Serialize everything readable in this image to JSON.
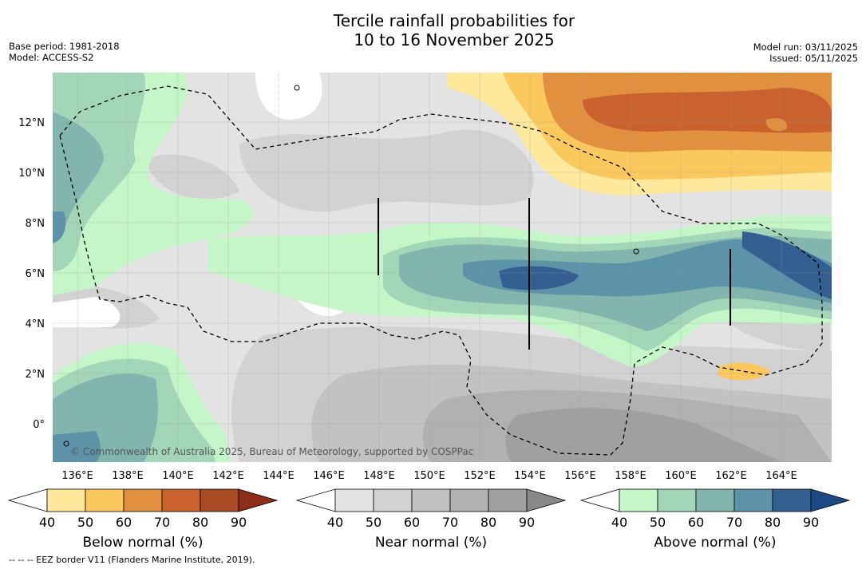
{
  "title_line1": "Tercile rainfall probabilities for",
  "title_line2": "10 to 16 November 2025",
  "meta_left": {
    "base_period": "Base period: 1981-2018",
    "model": "Model: ACCESS-S2"
  },
  "meta_right": {
    "model_run": "Model run: 03/11/2025",
    "issued": "Issued: 05/11/2025"
  },
  "map": {
    "lon_labels": [
      "136°E",
      "138°E",
      "140°E",
      "142°E",
      "144°E",
      "146°E",
      "148°E",
      "150°E",
      "152°E",
      "154°E",
      "156°E",
      "158°E",
      "160°E",
      "162°E",
      "164°E"
    ],
    "lat_labels": [
      "12°N",
      "10°N",
      "8°N",
      "6°N",
      "4°N",
      "2°N",
      "0°"
    ],
    "copyright": "© Commonwealth of Australia 2025, Bureau of Meteorology, supported by COSPPac"
  },
  "colorbars": [
    {
      "label": "Below normal (%)",
      "ticks": [
        "40",
        "50",
        "60",
        "70",
        "80",
        "90"
      ],
      "colors": [
        "#ffffff",
        "#fde89c",
        "#fbc85e",
        "#e0903f",
        "#c9622f",
        "#a84a24",
        "#8c2e1a"
      ]
    },
    {
      "label": "Near normal (%)",
      "ticks": [
        "40",
        "50",
        "60",
        "70",
        "80",
        "90"
      ],
      "colors": [
        "#ffffff",
        "#e3e3e3",
        "#d2d2d2",
        "#c2c2c2",
        "#b1b1b1",
        "#a0a0a0",
        "#888888"
      ]
    },
    {
      "label": "Above normal (%)",
      "ticks": [
        "40",
        "50",
        "60",
        "70",
        "80",
        "90"
      ],
      "colors": [
        "#ffffff",
        "#c5f6c8",
        "#a3d6b8",
        "#82b5ae",
        "#5d93a8",
        "#335f91",
        "#1d4a82"
      ]
    }
  ],
  "footnote": "--  --  -- EEZ border V11 (Flanders Marine Institute, 2019)."
}
